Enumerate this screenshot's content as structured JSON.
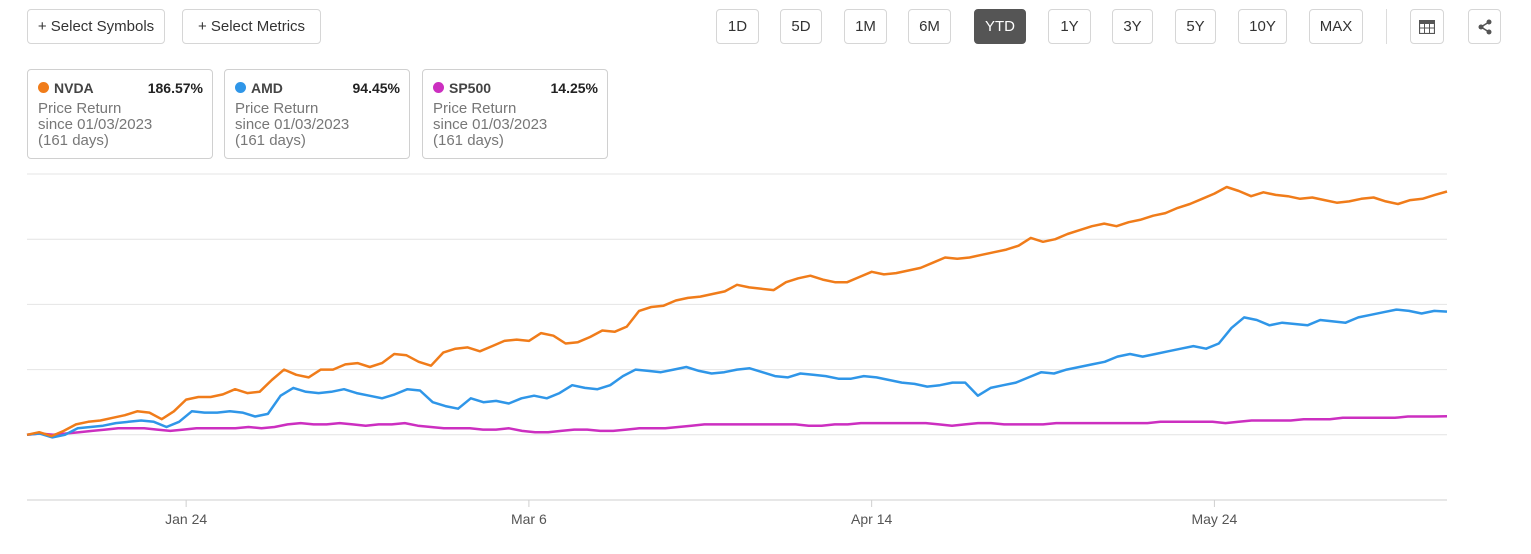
{
  "toolbar": {
    "select_symbols": "+ Select Symbols",
    "select_metrics": "+ Select Metrics",
    "ranges": [
      "1D",
      "5D",
      "1M",
      "6M",
      "YTD",
      "1Y",
      "3Y",
      "5Y",
      "10Y",
      "MAX"
    ],
    "active_range": "YTD",
    "table_icon": "table-icon",
    "share_icon": "share-icon"
  },
  "legend": [
    {
      "symbol": "NVDA",
      "value": "186.57%",
      "metric": "Price Return",
      "since": "since 01/03/2023",
      "days": "(161 days)",
      "color": "#f07c1a"
    },
    {
      "symbol": "AMD",
      "value": "94.45%",
      "metric": "Price Return",
      "since": "since 01/03/2023",
      "days": "(161 days)",
      "color": "#2f96e8"
    },
    {
      "symbol": "SP500",
      "value": "14.25%",
      "metric": "Price Return",
      "since": "since 01/03/2023",
      "days": "(161 days)",
      "color": "#cc2fc0"
    }
  ],
  "chart_data": {
    "type": "line",
    "title": "",
    "xlabel": "",
    "ylabel": "",
    "x_tick_labels": [
      "Jan 24",
      "Mar 6",
      "Apr 14",
      "May 24"
    ],
    "x_tick_index": [
      13,
      41,
      69,
      97
    ],
    "y_axis_labels_shown": false,
    "ylim": [
      -50,
      200
    ],
    "y_gridlines": [
      -50,
      0,
      50,
      100,
      150,
      200
    ],
    "grid": true,
    "series": [
      {
        "name": "NVDA",
        "color": "#f07c1a",
        "values": [
          0,
          2,
          -1,
          3,
          8,
          10,
          11,
          13,
          15,
          18,
          17,
          12,
          18,
          27,
          29,
          29,
          31,
          35,
          32,
          33,
          42,
          50,
          46,
          44,
          50,
          50,
          54,
          55,
          52,
          55,
          62,
          61,
          56,
          53,
          63,
          66,
          67,
          64,
          68,
          72,
          73,
          72,
          78,
          76,
          70,
          71,
          75,
          80,
          79,
          83,
          95,
          98,
          99,
          103,
          105,
          106,
          108,
          110,
          115,
          113,
          112,
          111,
          117,
          120,
          122,
          119,
          117,
          117,
          121,
          125,
          123,
          124,
          126,
          128,
          132,
          136,
          135,
          136,
          138,
          140,
          142,
          145,
          151,
          148,
          150,
          154,
          157,
          160,
          162,
          160,
          163,
          165,
          168,
          170,
          174,
          177,
          181,
          185,
          190,
          187,
          183,
          186,
          184,
          183,
          181,
          182,
          180,
          178,
          179,
          181,
          182,
          179,
          177,
          180,
          181,
          184,
          186.57
        ],
        "values_note": "values are approximate % price return, simplified"
      },
      {
        "name": "AMD",
        "color": "#2f96e8",
        "values": [
          0,
          1,
          -2,
          0,
          5,
          6,
          7,
          9,
          10,
          11,
          10,
          6,
          10,
          18,
          17,
          17,
          18,
          17,
          14,
          16,
          30,
          36,
          33,
          32,
          33,
          35,
          32,
          30,
          28,
          31,
          35,
          34,
          25,
          22,
          20,
          28,
          25,
          26,
          24,
          28,
          30,
          28,
          32,
          38,
          36,
          35,
          38,
          45,
          50,
          49,
          48,
          50,
          52,
          49,
          47,
          48,
          50,
          51,
          48,
          45,
          44,
          47,
          46,
          45,
          43,
          43,
          45,
          44,
          42,
          40,
          39,
          37,
          38,
          40,
          40,
          30,
          36,
          38,
          40,
          44,
          48,
          47,
          50,
          52,
          54,
          56,
          60,
          62,
          60,
          62,
          64,
          66,
          68,
          66,
          70,
          82,
          90,
          88,
          84,
          86,
          85,
          84,
          88,
          87,
          86,
          90,
          92,
          94,
          96,
          95,
          93,
          95,
          94.45
        ]
      },
      {
        "name": "SP500",
        "color": "#cc2fc0",
        "values": [
          0,
          1,
          0,
          1,
          2,
          3,
          4,
          5,
          5,
          5,
          4,
          3,
          4,
          5,
          5,
          5,
          5,
          6,
          5,
          6,
          8,
          9,
          8,
          8,
          9,
          8,
          7,
          8,
          8,
          9,
          7,
          6,
          5,
          5,
          5,
          4,
          4,
          5,
          3,
          2,
          2,
          3,
          4,
          4,
          3,
          3,
          4,
          5,
          5,
          5,
          6,
          7,
          8,
          8,
          8,
          8,
          8,
          8,
          8,
          8,
          7,
          7,
          8,
          8,
          9,
          9,
          9,
          9,
          9,
          9,
          8,
          7,
          8,
          9,
          9,
          8,
          8,
          8,
          8,
          9,
          9,
          9,
          9,
          9,
          9,
          9,
          9,
          10,
          10,
          10,
          10,
          10,
          9,
          10,
          11,
          11,
          11,
          11,
          12,
          12,
          12,
          13,
          13,
          13,
          13,
          13,
          14,
          14,
          14,
          14.25
        ]
      }
    ]
  }
}
